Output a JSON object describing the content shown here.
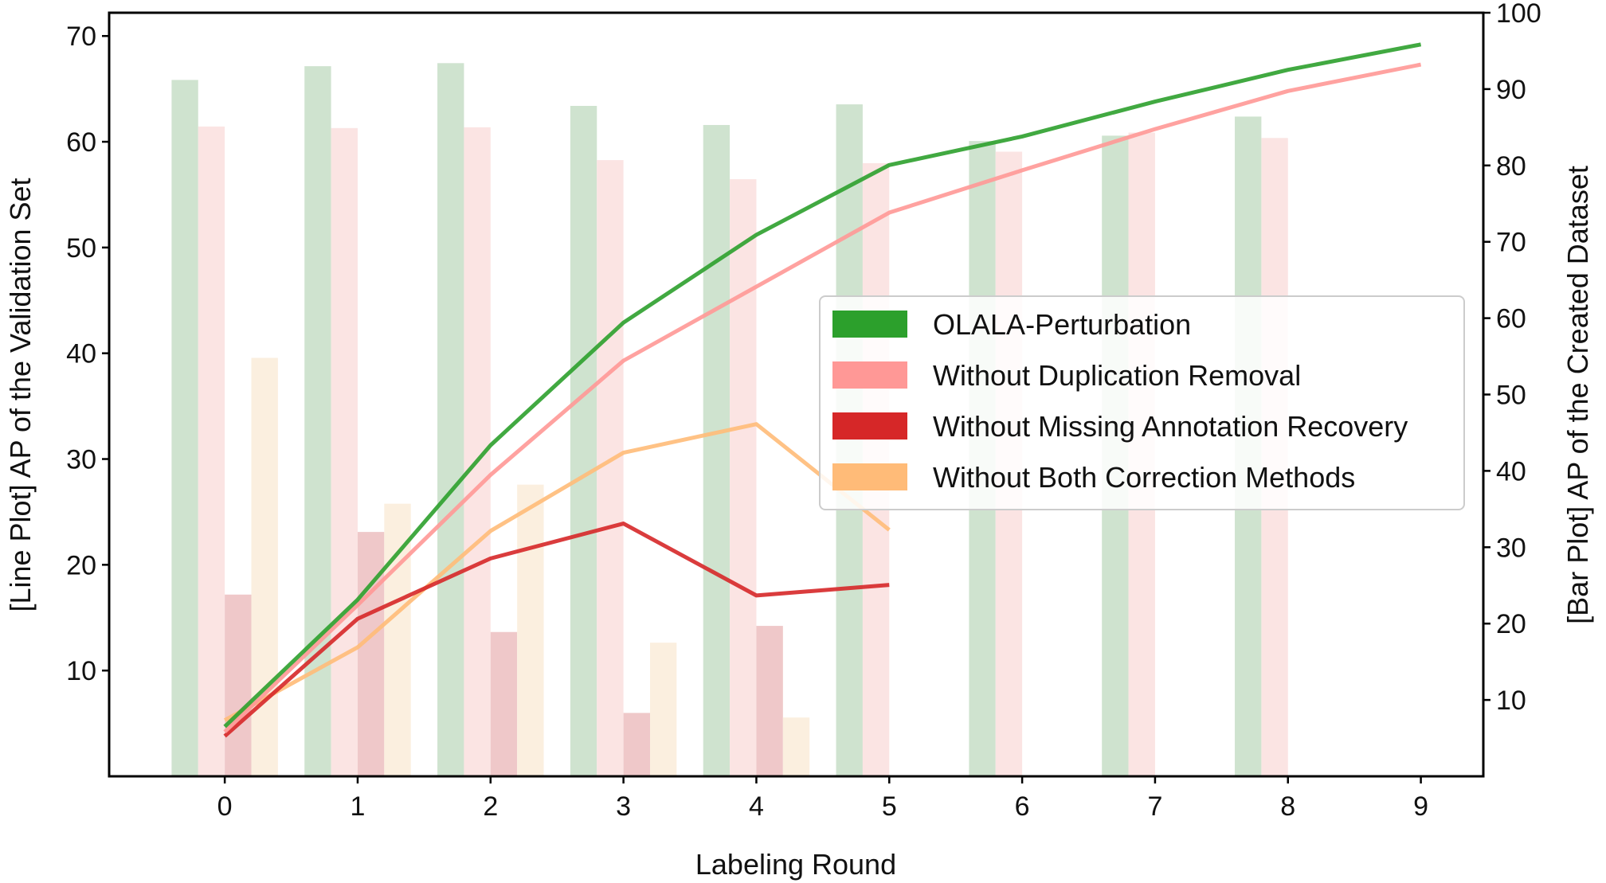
{
  "chart_data": {
    "type": "bar+line",
    "xlabel": "Labeling Round",
    "ylabel_left": "[Line Plot] AP of the Validation Set",
    "ylabel_right": "[Bar Plot] AP of the Created Dataset",
    "x_ticks": [
      "0",
      "1",
      "2",
      "3",
      "4",
      "5",
      "6",
      "7",
      "8",
      "9"
    ],
    "xlim": [
      -0.87,
      9.47
    ],
    "ylim_left": [
      0,
      72.2
    ],
    "yticks_left": [
      10,
      20,
      30,
      40,
      50,
      60,
      70
    ],
    "ylim_right": [
      0,
      100
    ],
    "yticks_right": [
      10,
      20,
      30,
      40,
      50,
      60,
      70,
      80,
      90,
      100
    ],
    "legend_position": "center-right",
    "series": [
      {
        "name": "OLALA-Perturbation",
        "color": "#2ca02c",
        "bar_color": "#cfe3cf",
        "line_x": [
          0,
          1,
          2,
          3,
          4,
          5,
          6,
          7,
          8,
          9
        ],
        "line_y": [
          4.7,
          16.7,
          31.3,
          42.9,
          51.2,
          57.8,
          60.5,
          63.8,
          66.8,
          69.2
        ],
        "bar_x": [
          0,
          1,
          2,
          3,
          4,
          5,
          6,
          7,
          8
        ],
        "bar_y": [
          91.2,
          93.0,
          93.4,
          87.8,
          85.3,
          88.0,
          83.2,
          83.9,
          86.4
        ]
      },
      {
        "name": "Without Duplication Removal",
        "color": "#ff9896",
        "bar_color": "#fbe4e3",
        "line_x": [
          0,
          1,
          2,
          3,
          4,
          5,
          6,
          7,
          8,
          9
        ],
        "line_y": [
          4.2,
          16.2,
          28.5,
          39.3,
          46.3,
          53.3,
          57.3,
          61.2,
          64.8,
          67.3
        ],
        "bar_x": [
          0,
          1,
          2,
          3,
          4,
          5,
          6,
          7,
          8
        ],
        "bar_y": [
          85.1,
          84.9,
          85.0,
          80.7,
          78.2,
          80.3,
          81.8,
          84.3,
          83.6
        ]
      },
      {
        "name": "Without Missing Annotation Recovery",
        "color": "#d62728",
        "bar_color": "#efc8c9",
        "line_x": [
          0,
          1,
          2,
          3,
          4,
          5
        ],
        "line_y": [
          3.8,
          14.9,
          20.6,
          23.9,
          17.1,
          18.1
        ],
        "bar_x": [
          0,
          1,
          2,
          3,
          4
        ],
        "bar_y": [
          23.8,
          32.0,
          18.9,
          8.3,
          19.7
        ]
      },
      {
        "name": "Without Both Correction Methods",
        "color": "#ffbb78",
        "bar_color": "#fbefdf",
        "line_x": [
          0,
          1,
          2,
          3,
          4,
          5
        ],
        "line_y": [
          5.3,
          12.2,
          23.2,
          30.6,
          33.3,
          23.3
        ],
        "bar_x": [
          0,
          1,
          2,
          3,
          4
        ],
        "bar_y": [
          54.8,
          35.7,
          38.2,
          17.5,
          7.7
        ]
      }
    ]
  }
}
